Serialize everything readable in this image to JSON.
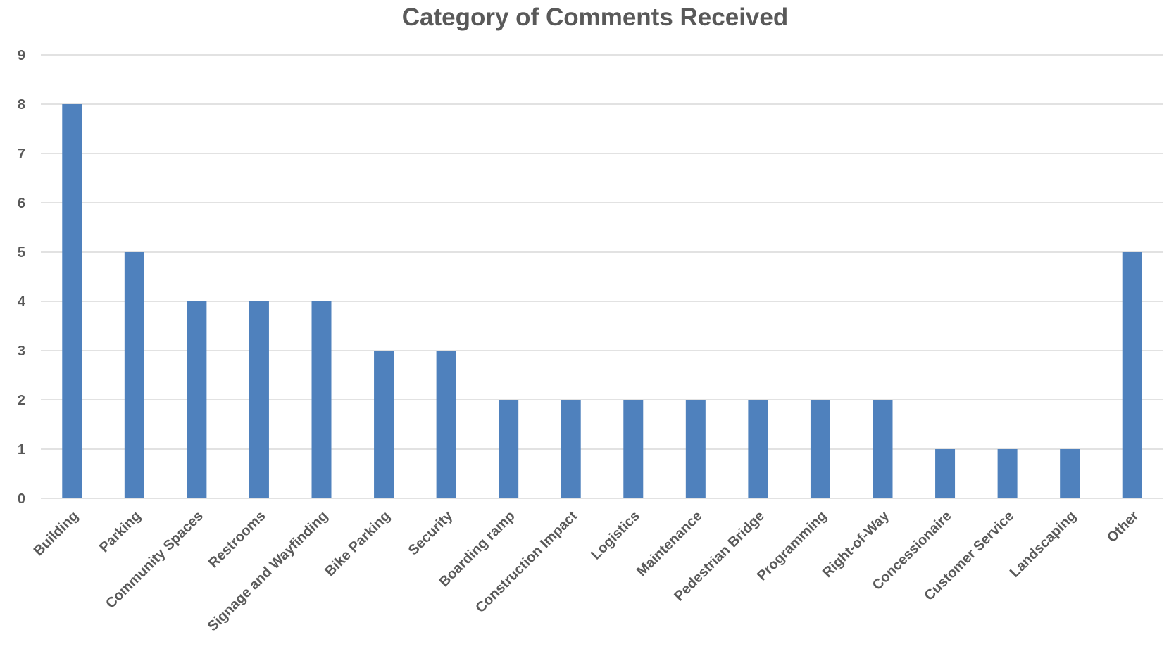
{
  "chart_data": {
    "type": "bar",
    "title": "Category of Comments Received",
    "xlabel": "",
    "ylabel": "",
    "categories": [
      "Building",
      "Parking",
      "Community Spaces",
      "Restrooms",
      "Signage and Wayfinding",
      "Bike Parking",
      "Security",
      "Boarding ramp",
      "Construction Impact",
      "Logistics",
      "Maintenance",
      "Pedestrian Bridge",
      "Programming",
      "Right-of-Way",
      "Concessionaire",
      "Customer Service",
      "Landscaping",
      "Other"
    ],
    "values": [
      8,
      5,
      4,
      4,
      4,
      3,
      3,
      2,
      2,
      2,
      2,
      2,
      2,
      2,
      1,
      1,
      1,
      5
    ],
    "ylim": [
      0,
      9
    ],
    "yticks": [
      "0",
      "1",
      "2",
      "3",
      "4",
      "5",
      "6",
      "7",
      "8",
      "9"
    ],
    "grid": true,
    "legend": "none",
    "bar_color": "#4f81bd"
  }
}
